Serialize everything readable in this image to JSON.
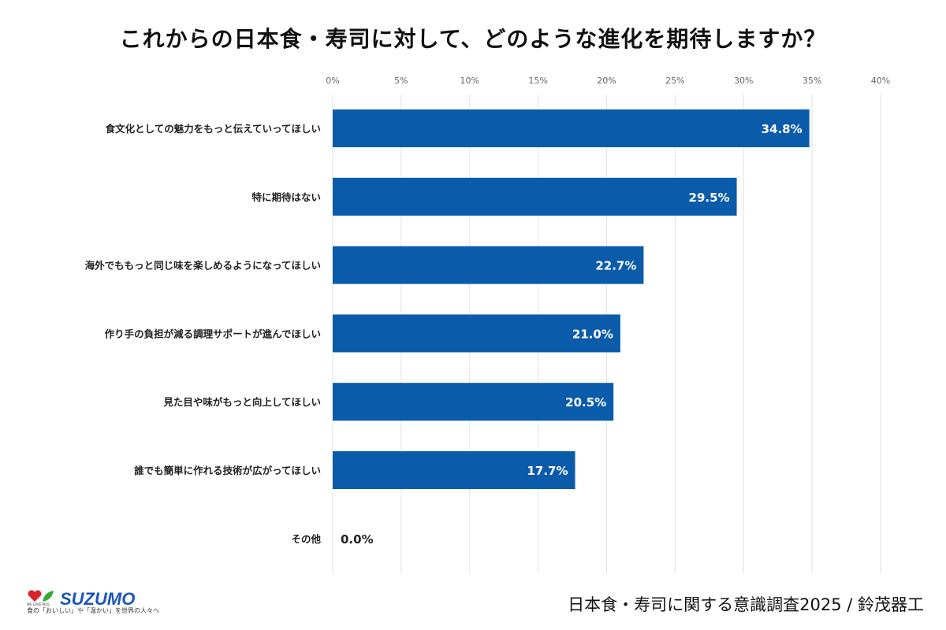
{
  "title": "これからの日本食・寿司に対して、どのような進化を期待しますか？",
  "source": "日本食・寿司に関する意識調査2025 / 鈴茂器工",
  "logo": {
    "brand": "SUZUMO",
    "sub": "WE LOVE RICE",
    "tagline": "食の「おいしい」や「温かい」を世界の人々へ"
  },
  "chart_data": {
    "type": "bar",
    "orientation": "horizontal",
    "categories": [
      "食文化としての魅力をもっと伝えていってほしい",
      "特に期待はない",
      "海外でももっと同じ味を楽しめるようになってほしい",
      "作り手の負担が減る調理サポートが進んでほしい",
      "見た目や味がもっと向上してほしい",
      "誰でも簡単に作れる技術が広がってほしい",
      "その他"
    ],
    "values": [
      34.8,
      29.5,
      22.7,
      21.0,
      20.5,
      17.7,
      0.0
    ],
    "data_labels": [
      "34.8%",
      "29.5%",
      "22.7%",
      "21.0%",
      "20.5%",
      "17.7%",
      "0.0%"
    ],
    "xlim": [
      0,
      40
    ],
    "x_ticks": [
      "0%",
      "5%",
      "10%",
      "15%",
      "20%",
      "25%",
      "30%",
      "35%",
      "40%"
    ],
    "x_axis_position": "top",
    "grid": true,
    "bar_color": "#0b5bab"
  }
}
